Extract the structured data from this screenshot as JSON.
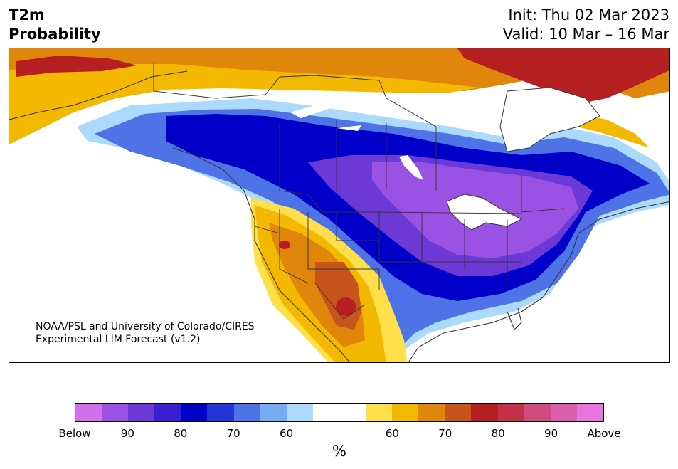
{
  "header": {
    "title_line1": "T2m",
    "title_line2": "Probability",
    "init_text": "Init: Thu 02 Mar 2023",
    "valid_text": "Valid: 10 Mar – 16 Mar"
  },
  "credit": {
    "line1": "NOAA/PSL and University of Colorado/CIRES",
    "line2": "Experimental LIM Forecast (v1.2)"
  },
  "colorbar": {
    "colors": [
      "#d171ea",
      "#9a52e4",
      "#6c38d6",
      "#3a1ed4",
      "#0000c8",
      "#2236d6",
      "#4d73e6",
      "#76acf2",
      "#acdafc",
      "#ffffff",
      "#ffffff",
      "#ffe04a",
      "#f3b800",
      "#df860b",
      "#c7541a",
      "#b51f21",
      "#c23248",
      "#d04c7c",
      "#dc5fac",
      "#e874de"
    ],
    "labels": [
      "Below",
      "90",
      "80",
      "70",
      "60",
      "60",
      "70",
      "80",
      "90",
      "Above"
    ],
    "unit": "%"
  },
  "palette": {
    "below_70": "#0000c8",
    "below_80": "#6c38d6",
    "below_90": "#9a52e4",
    "above_60": "#f3b800",
    "above_70": "#df860b",
    "above_80": "#b51f21",
    "border": "#333333"
  }
}
